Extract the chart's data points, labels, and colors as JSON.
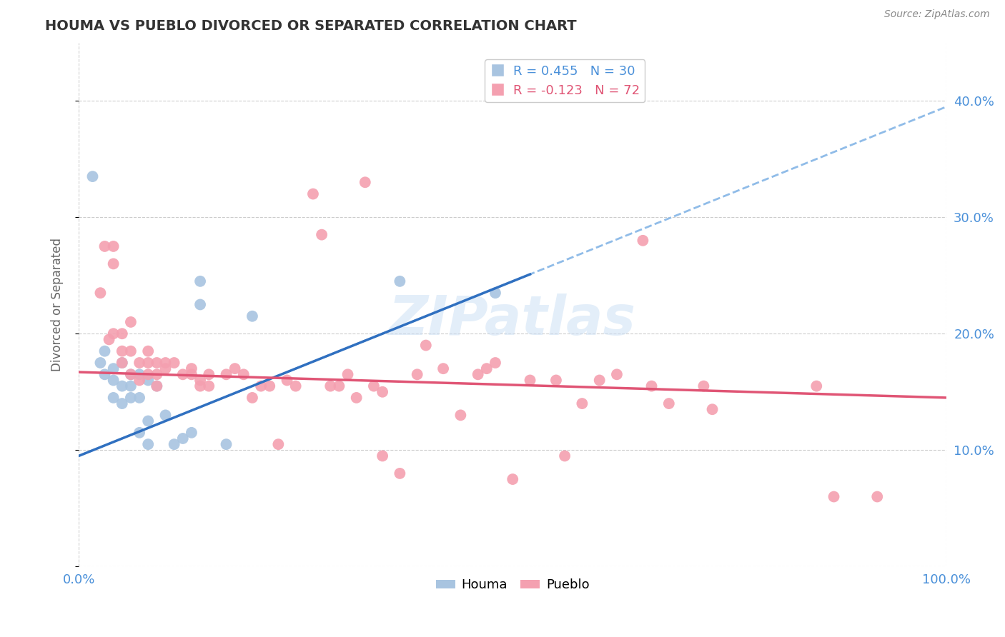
{
  "title": "HOUMA VS PUEBLO DIVORCED OR SEPARATED CORRELATION CHART",
  "source": "Source: ZipAtlas.com",
  "ylabel": "Divorced or Separated",
  "xlim": [
    0.0,
    1.0
  ],
  "ylim": [
    0.0,
    0.45
  ],
  "yticks": [
    0.0,
    0.1,
    0.2,
    0.3,
    0.4
  ],
  "xticks": [
    0.0,
    1.0
  ],
  "grid_color": "#cccccc",
  "background_color": "#ffffff",
  "houma_color": "#a8c4e0",
  "pueblo_color": "#f4a0b0",
  "houma_R": 0.455,
  "houma_N": 30,
  "pueblo_R": -0.123,
  "pueblo_N": 72,
  "legend_R_color_houma": "#4a90d9",
  "legend_R_color_pueblo": "#e05575",
  "regression_line_houma_color": "#3070c0",
  "regression_line_pueblo_color": "#e05575",
  "dashed_line_color": "#90bce8",
  "houma_points": [
    [
      0.016,
      0.335
    ],
    [
      0.025,
      0.175
    ],
    [
      0.03,
      0.185
    ],
    [
      0.03,
      0.165
    ],
    [
      0.04,
      0.16
    ],
    [
      0.04,
      0.145
    ],
    [
      0.04,
      0.17
    ],
    [
      0.05,
      0.175
    ],
    [
      0.05,
      0.155
    ],
    [
      0.05,
      0.14
    ],
    [
      0.06,
      0.165
    ],
    [
      0.06,
      0.155
    ],
    [
      0.06,
      0.145
    ],
    [
      0.07,
      0.165
    ],
    [
      0.07,
      0.145
    ],
    [
      0.07,
      0.115
    ],
    [
      0.08,
      0.16
    ],
    [
      0.08,
      0.125
    ],
    [
      0.08,
      0.105
    ],
    [
      0.09,
      0.155
    ],
    [
      0.1,
      0.13
    ],
    [
      0.11,
      0.105
    ],
    [
      0.12,
      0.11
    ],
    [
      0.13,
      0.115
    ],
    [
      0.14,
      0.245
    ],
    [
      0.14,
      0.225
    ],
    [
      0.17,
      0.105
    ],
    [
      0.2,
      0.215
    ],
    [
      0.37,
      0.245
    ],
    [
      0.48,
      0.235
    ]
  ],
  "pueblo_points": [
    [
      0.025,
      0.235
    ],
    [
      0.03,
      0.275
    ],
    [
      0.035,
      0.195
    ],
    [
      0.04,
      0.275
    ],
    [
      0.04,
      0.26
    ],
    [
      0.04,
      0.2
    ],
    [
      0.05,
      0.2
    ],
    [
      0.05,
      0.185
    ],
    [
      0.05,
      0.175
    ],
    [
      0.06,
      0.21
    ],
    [
      0.06,
      0.185
    ],
    [
      0.06,
      0.165
    ],
    [
      0.07,
      0.175
    ],
    [
      0.07,
      0.16
    ],
    [
      0.08,
      0.185
    ],
    [
      0.08,
      0.175
    ],
    [
      0.08,
      0.165
    ],
    [
      0.09,
      0.175
    ],
    [
      0.09,
      0.165
    ],
    [
      0.09,
      0.155
    ],
    [
      0.1,
      0.175
    ],
    [
      0.1,
      0.17
    ],
    [
      0.11,
      0.175
    ],
    [
      0.12,
      0.165
    ],
    [
      0.13,
      0.17
    ],
    [
      0.13,
      0.165
    ],
    [
      0.14,
      0.16
    ],
    [
      0.14,
      0.155
    ],
    [
      0.15,
      0.165
    ],
    [
      0.15,
      0.155
    ],
    [
      0.17,
      0.165
    ],
    [
      0.18,
      0.17
    ],
    [
      0.19,
      0.165
    ],
    [
      0.2,
      0.145
    ],
    [
      0.21,
      0.155
    ],
    [
      0.22,
      0.155
    ],
    [
      0.23,
      0.105
    ],
    [
      0.24,
      0.16
    ],
    [
      0.25,
      0.155
    ],
    [
      0.27,
      0.32
    ],
    [
      0.28,
      0.285
    ],
    [
      0.29,
      0.155
    ],
    [
      0.3,
      0.155
    ],
    [
      0.31,
      0.165
    ],
    [
      0.32,
      0.145
    ],
    [
      0.33,
      0.33
    ],
    [
      0.34,
      0.155
    ],
    [
      0.35,
      0.15
    ],
    [
      0.35,
      0.095
    ],
    [
      0.37,
      0.08
    ],
    [
      0.39,
      0.165
    ],
    [
      0.4,
      0.19
    ],
    [
      0.42,
      0.17
    ],
    [
      0.44,
      0.13
    ],
    [
      0.46,
      0.165
    ],
    [
      0.47,
      0.17
    ],
    [
      0.48,
      0.175
    ],
    [
      0.5,
      0.075
    ],
    [
      0.52,
      0.16
    ],
    [
      0.55,
      0.16
    ],
    [
      0.56,
      0.095
    ],
    [
      0.58,
      0.14
    ],
    [
      0.6,
      0.16
    ],
    [
      0.62,
      0.165
    ],
    [
      0.65,
      0.28
    ],
    [
      0.66,
      0.155
    ],
    [
      0.68,
      0.14
    ],
    [
      0.72,
      0.155
    ],
    [
      0.73,
      0.135
    ],
    [
      0.85,
      0.155
    ],
    [
      0.87,
      0.06
    ],
    [
      0.92,
      0.06
    ]
  ]
}
